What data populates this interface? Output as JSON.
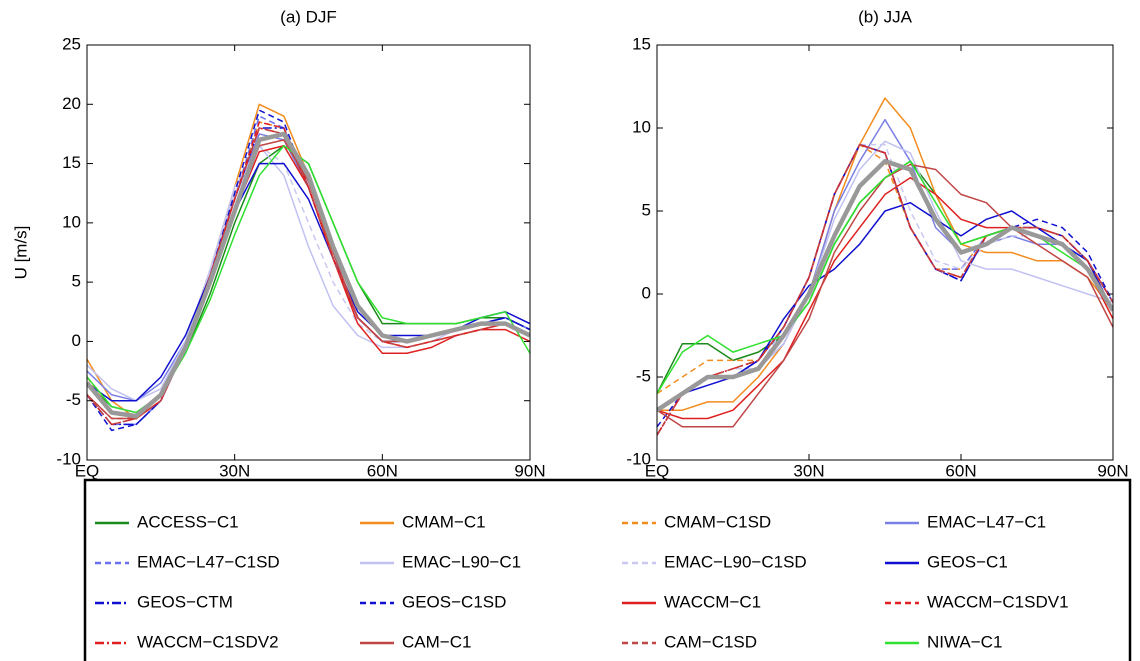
{
  "chart_data": [
    {
      "type": "line",
      "title": "(a) DJF",
      "ylabel": "U [m/s]",
      "x": [
        0,
        5,
        10,
        15,
        20,
        25,
        30,
        35,
        40,
        45,
        50,
        55,
        60,
        65,
        70,
        75,
        80,
        85,
        90
      ],
      "xlim": [
        0,
        90
      ],
      "xticks": [
        {
          "value": 0,
          "label": "EQ"
        },
        {
          "value": 30,
          "label": "30N"
        },
        {
          "value": 60,
          "label": "60N"
        },
        {
          "value": 90,
          "label": "90N"
        }
      ],
      "ylim": [
        -10,
        25
      ],
      "yticks": [
        -10,
        -5,
        0,
        5,
        10,
        15,
        20,
        25
      ],
      "legend": "below",
      "series": [
        {
          "name": "ACCESS−C1",
          "color": "#1a8a1a",
          "style": "solid",
          "values": [
            -3.5,
            -5.5,
            -6,
            -4.5,
            -1,
            4,
            10,
            15,
            16.5,
            15,
            10,
            5,
            1.5,
            1.5,
            1.5,
            1.5,
            2,
            2,
            1
          ]
        },
        {
          "name": "CMAM−C1",
          "color": "#f28c1e",
          "style": "solid",
          "values": [
            -1.5,
            -5,
            -6.5,
            -5,
            -0.5,
            6,
            13,
            20,
            19,
            14,
            7,
            2,
            0,
            0,
            0.5,
            1,
            1.5,
            1.5,
            0.5
          ]
        },
        {
          "name": "CMAM−C1SD",
          "color": "#f28c1e",
          "style": "dashed",
          "values": [
            -3,
            -6,
            -6.5,
            -4.5,
            0,
            6,
            12,
            18.5,
            18,
            13,
            7,
            2,
            0,
            -0.5,
            0,
            0.5,
            1,
            1.5,
            0.5
          ]
        },
        {
          "name": "EMAC−L47−C1",
          "color": "#7b80e6",
          "style": "solid",
          "values": [
            -2.5,
            -4.5,
            -5,
            -3.5,
            0,
            6,
            12,
            17.5,
            17,
            13,
            7,
            2,
            0,
            0,
            0.5,
            1,
            1.5,
            2,
            1
          ]
        },
        {
          "name": "EMAC−L47−C1SD",
          "color": "#6a70f0",
          "style": "dashed",
          "values": [
            -4.5,
            -7,
            -7,
            -5,
            -0.5,
            5.5,
            12,
            19,
            18,
            13,
            7,
            2,
            0,
            0,
            0.5,
            1,
            1.5,
            2,
            1
          ]
        },
        {
          "name": "EMAC−L90−C1",
          "color": "#c2c2f2",
          "style": "solid",
          "values": [
            -2,
            -4,
            -5,
            -4,
            0,
            6,
            13,
            16.5,
            14,
            8,
            3,
            0.5,
            -0.5,
            -0.5,
            0,
            1,
            1.5,
            1.5,
            0.5
          ]
        },
        {
          "name": "EMAC−L90−C1SD",
          "color": "#c8c8f0",
          "style": "dashed",
          "values": [
            -3,
            -5.5,
            -6,
            -4.5,
            0,
            6,
            12.5,
            16.5,
            15,
            10,
            5,
            1.5,
            0,
            0,
            0.5,
            1,
            1.5,
            1.5,
            0.5
          ]
        },
        {
          "name": "GEOS−C1",
          "color": "#1010d0",
          "style": "solid",
          "values": [
            -3.5,
            -5,
            -5,
            -3,
            0.5,
            5.5,
            11,
            15,
            15,
            12,
            7,
            2.5,
            0.5,
            0.5,
            0.5,
            1,
            2,
            2.5,
            1.5
          ]
        },
        {
          "name": "GEOS−CTM",
          "color": "#1010d0",
          "style": "dashdot",
          "values": [
            -4.5,
            -7,
            -7,
            -5,
            -0.5,
            5.5,
            12,
            18,
            18,
            13,
            7,
            2,
            0,
            0,
            0.5,
            1,
            1.5,
            2,
            1
          ]
        },
        {
          "name": "GEOS−C1SD",
          "color": "#1010d0",
          "style": "dashed",
          "values": [
            -4.5,
            -7.5,
            -7,
            -5,
            -0.5,
            5.5,
            12.5,
            19.5,
            18.5,
            13,
            7,
            2,
            0,
            0,
            0.5,
            1,
            1.5,
            2,
            1
          ]
        },
        {
          "name": "WACCM−C1",
          "color": "#e02020",
          "style": "solid",
          "values": [
            -3.5,
            -6,
            -6.5,
            -4.5,
            -0.5,
            5,
            11,
            16,
            16.5,
            13,
            7,
            1.5,
            -1,
            -1,
            -0.5,
            0.5,
            1,
            1,
            0
          ]
        },
        {
          "name": "WACCM−C1SDV1",
          "color": "#e02020",
          "style": "dashed",
          "values": [
            -4.5,
            -6.5,
            -6.5,
            -5,
            -0.5,
            5.5,
            12,
            18.5,
            18,
            13,
            7,
            2,
            0,
            -0.5,
            0,
            0.5,
            1,
            1.5,
            0.5
          ]
        },
        {
          "name": "WACCM−C1SDV2",
          "color": "#e02020",
          "style": "dashdot",
          "values": [
            -4.5,
            -7,
            -6.5,
            -5,
            -0.5,
            5.5,
            12,
            18,
            17.5,
            13,
            7,
            2,
            0,
            -0.5,
            0,
            0.5,
            1,
            1.5,
            0.5
          ]
        },
        {
          "name": "CAM−C1",
          "color": "#c04545",
          "style": "solid",
          "values": [
            -4.5,
            -6.5,
            -6.5,
            -4.5,
            -0.5,
            5,
            11,
            16.5,
            17,
            13.5,
            7.5,
            2,
            0,
            0,
            0.5,
            1,
            1.5,
            1.5,
            0.5
          ]
        },
        {
          "name": "CAM−C1SD",
          "color": "#c04545",
          "style": "dashed",
          "values": [
            -4.5,
            -7,
            -6.5,
            -5,
            -0.5,
            5.5,
            12,
            18,
            17.5,
            13,
            7,
            2,
            0,
            -0.5,
            0,
            0.5,
            1,
            1.5,
            0.5
          ]
        },
        {
          "name": "NIWA−C1",
          "color": "#30e030",
          "style": "solid",
          "values": [
            -3,
            -5.5,
            -6,
            -4.5,
            -1,
            3.5,
            9,
            14,
            16.5,
            15,
            10,
            5,
            2,
            1.5,
            1.5,
            1.5,
            2,
            2.5,
            -1
          ]
        },
        {
          "color": "#999999",
          "style": "thick",
          "values": [
            -3.5,
            -6,
            -6.3,
            -4.5,
            -0.5,
            5,
            11,
            17,
            17.5,
            14,
            8,
            3,
            0.5,
            0,
            0.5,
            1,
            1.5,
            1.5,
            0.5
          ]
        }
      ]
    },
    {
      "type": "line",
      "title": "(b) JJA",
      "x": [
        0,
        5,
        10,
        15,
        20,
        25,
        30,
        35,
        40,
        45,
        50,
        55,
        60,
        65,
        70,
        75,
        80,
        85,
        90
      ],
      "xlim": [
        0,
        90
      ],
      "xticks": [
        {
          "value": 0,
          "label": "EQ"
        },
        {
          "value": 30,
          "label": "30N"
        },
        {
          "value": 60,
          "label": "60N"
        },
        {
          "value": 90,
          "label": "90N"
        }
      ],
      "ylim": [
        -10,
        15
      ],
      "yticks": [
        -10,
        -5,
        0,
        5,
        10,
        15
      ],
      "series": [
        {
          "color": "#1a8a1a",
          "style": "solid",
          "values": [
            -6,
            -3,
            -3,
            -4,
            -3.5,
            -2.5,
            -0.5,
            3,
            5.5,
            7,
            8,
            6,
            3,
            3.5,
            4,
            3.5,
            3,
            2,
            -1
          ]
        },
        {
          "color": "#f28c1e",
          "style": "solid",
          "values": [
            -7,
            -7,
            -6.5,
            -6.5,
            -5,
            -3,
            0,
            5,
            9,
            11.8,
            10,
            6,
            3,
            2.5,
            2.5,
            2,
            2,
            1,
            -1
          ]
        },
        {
          "color": "#f28c1e",
          "style": "dashed",
          "values": [
            -6,
            -5,
            -4,
            -4,
            -4,
            -2,
            1,
            6,
            9,
            8,
            4,
            1.5,
            1.5,
            3.5,
            4,
            4,
            3.5,
            2,
            -1
          ]
        },
        {
          "color": "#7b80e6",
          "style": "solid",
          "values": [
            -7,
            -6,
            -5,
            -5,
            -4.5,
            -3,
            0,
            5,
            8,
            10.5,
            8,
            4,
            2.5,
            3,
            3.5,
            3,
            3,
            1.5,
            -1
          ]
        },
        {
          "color": "#6a70f0",
          "style": "dashed",
          "values": [
            -7,
            -6,
            -5,
            -5,
            -4.5,
            -2,
            1,
            6,
            9,
            8.5,
            4,
            1.5,
            1.5,
            3.5,
            4,
            4,
            3.5,
            2,
            -0.5
          ]
        },
        {
          "color": "#c2c2f2",
          "style": "solid",
          "values": [
            -7,
            -6,
            -5,
            -5,
            -4.5,
            -3,
            0,
            4.5,
            7.5,
            9.2,
            8.5,
            5,
            2,
            1.5,
            1.5,
            1,
            0.5,
            0,
            -0.5
          ]
        },
        {
          "color": "#c8c8f0",
          "style": "dashed",
          "values": [
            -7,
            -6,
            -5,
            -4.5,
            -4.5,
            -2,
            1,
            6,
            9,
            9,
            5,
            2,
            1.5,
            3,
            3.5,
            3.5,
            3,
            2,
            -1
          ]
        },
        {
          "color": "#1010d0",
          "style": "solid",
          "values": [
            -7,
            -6,
            -5.5,
            -5,
            -4,
            -1.5,
            0.5,
            1.5,
            3,
            5,
            5.5,
            4.5,
            3.5,
            4.5,
            5,
            4,
            3,
            2,
            -1
          ]
        },
        {
          "color": "#1010d0",
          "style": "dashdot",
          "values": [
            -8.5,
            -6,
            -5,
            -5,
            -4,
            -2,
            1,
            6,
            9,
            8.5,
            4,
            1.5,
            0.8,
            3.5,
            4,
            4,
            3.5,
            2,
            -0.5
          ]
        },
        {
          "color": "#1010d0",
          "style": "dashed",
          "values": [
            -8,
            -6,
            -5,
            -5,
            -4,
            -2,
            1,
            6,
            9,
            8.5,
            4,
            1.5,
            0.8,
            3.5,
            4,
            4.5,
            4,
            2.5,
            -0.5
          ]
        },
        {
          "color": "#e02020",
          "style": "solid",
          "values": [
            -7,
            -7.5,
            -7.5,
            -7,
            -5.5,
            -4,
            -1,
            2,
            4,
            6,
            7,
            6,
            4.5,
            4,
            4,
            3.5,
            3,
            1.5,
            -1.5
          ]
        },
        {
          "color": "#e02020",
          "style": "dashed",
          "values": [
            -8.5,
            -6,
            -5,
            -4.5,
            -4,
            -2,
            1,
            6,
            9,
            8.5,
            4,
            1.5,
            1,
            3.5,
            4,
            4,
            3.5,
            2,
            -0.5
          ]
        },
        {
          "color": "#e02020",
          "style": "dashdot",
          "values": [
            -8.5,
            -6,
            -5,
            -4.5,
            -4,
            -2,
            1,
            6,
            9,
            8.5,
            4,
            1.5,
            1,
            3.5,
            4,
            4,
            3.5,
            2,
            -0.5
          ]
        },
        {
          "color": "#c04545",
          "style": "solid",
          "values": [
            -7,
            -8,
            -8,
            -8,
            -6,
            -4,
            -1.5,
            2.5,
            5,
            7,
            7.8,
            7.5,
            6,
            5.5,
            4,
            3,
            2,
            1,
            -2
          ]
        },
        {
          "color": "#c04545",
          "style": "dashed",
          "values": [
            -8.5,
            -6,
            -5,
            -4.5,
            -4,
            -2,
            1,
            6,
            9,
            8.5,
            4,
            1.5,
            1,
            3.5,
            4,
            4,
            3.5,
            2,
            -0.5
          ]
        },
        {
          "color": "#30e030",
          "style": "solid",
          "values": [
            -6,
            -3.5,
            -2.5,
            -3.5,
            -3,
            -2.5,
            -0.5,
            3,
            5.5,
            7,
            8,
            5.5,
            3,
            3.5,
            4,
            3.5,
            2.5,
            1.5,
            -1
          ]
        },
        {
          "color": "#999999",
          "style": "thick",
          "values": [
            -7,
            -6,
            -5,
            -5,
            -4.5,
            -2.5,
            0,
            3.5,
            6.5,
            8,
            7.5,
            4.5,
            2.5,
            3,
            4,
            3.5,
            3,
            1.5,
            -1
          ]
        }
      ]
    }
  ]
}
